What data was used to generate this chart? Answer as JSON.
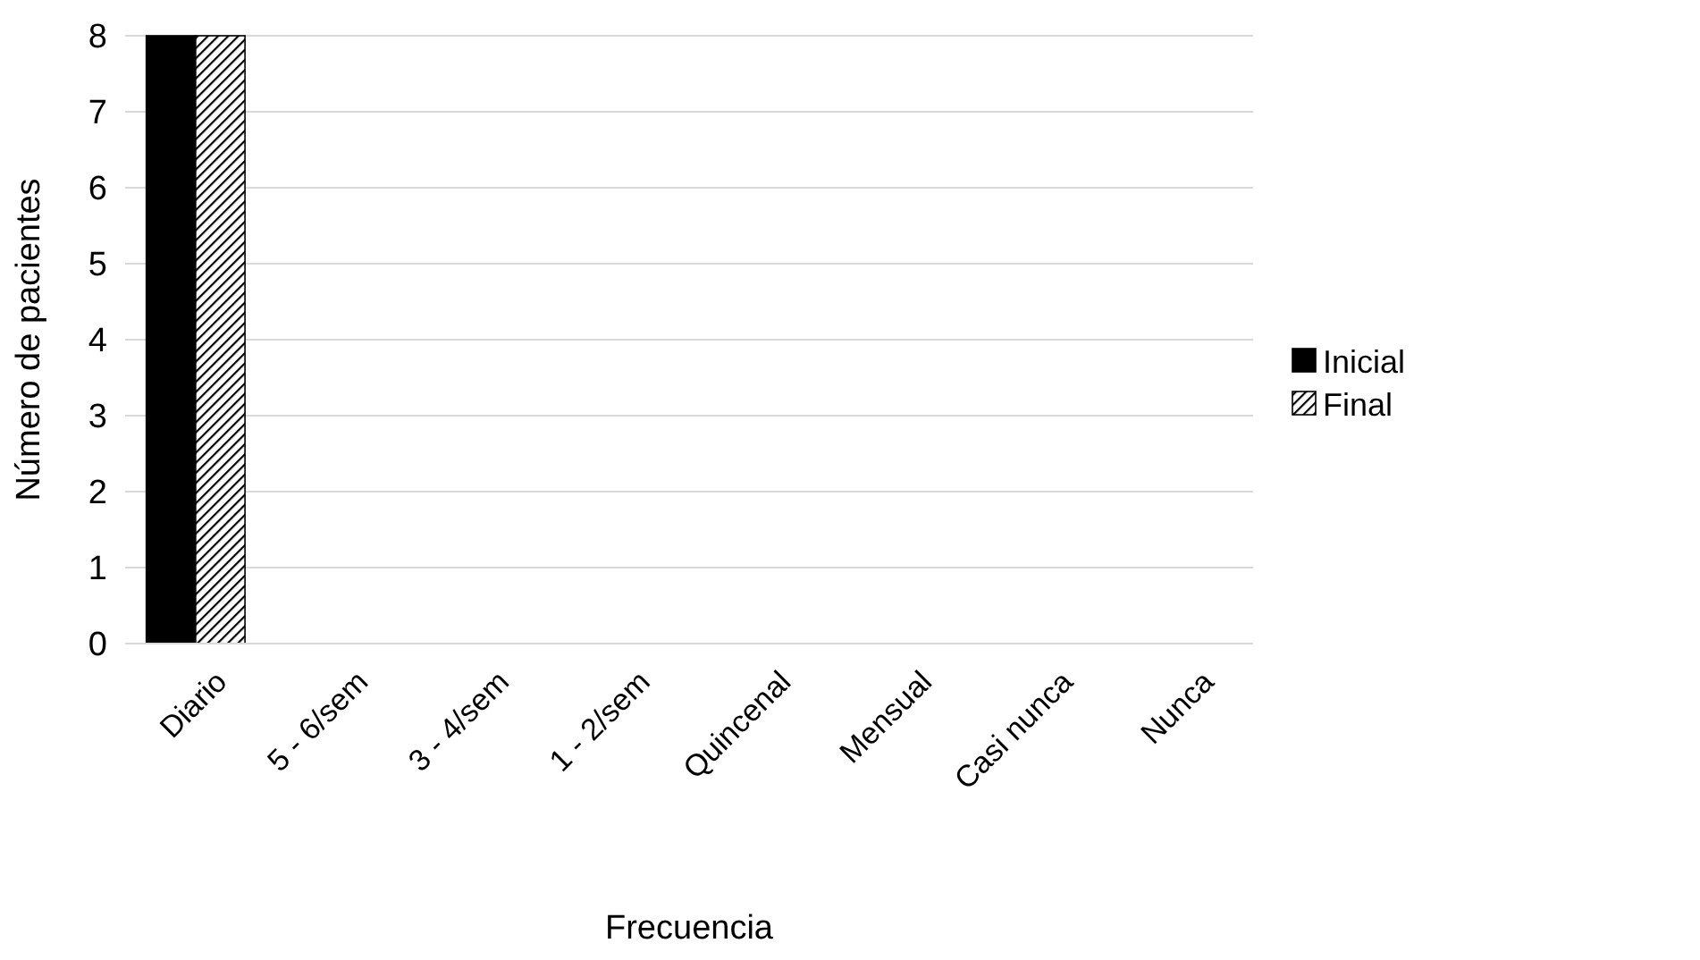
{
  "chart_data": {
    "type": "bar",
    "xlabel": "Frecuencia",
    "ylabel": "Número de pacientes",
    "categories": [
      "Diario",
      "5 - 6/sem",
      "3 - 4/sem",
      "1 - 2/sem",
      "Quincenal",
      "Mensual",
      "Casi nunca",
      "Nunca"
    ],
    "series": [
      {
        "name": "Inicial",
        "color": "#000000",
        "values": [
          8,
          0,
          0,
          0,
          0,
          0,
          0,
          0
        ]
      },
      {
        "name": "Final",
        "color": "#000000",
        "values": [
          8,
          0,
          0,
          0,
          0,
          0,
          0,
          0
        ]
      }
    ],
    "ylim": [
      0,
      8
    ],
    "yticks": [
      0,
      1,
      2,
      3,
      4,
      5,
      6,
      7,
      8
    ],
    "grid": "y",
    "legend": "right"
  }
}
